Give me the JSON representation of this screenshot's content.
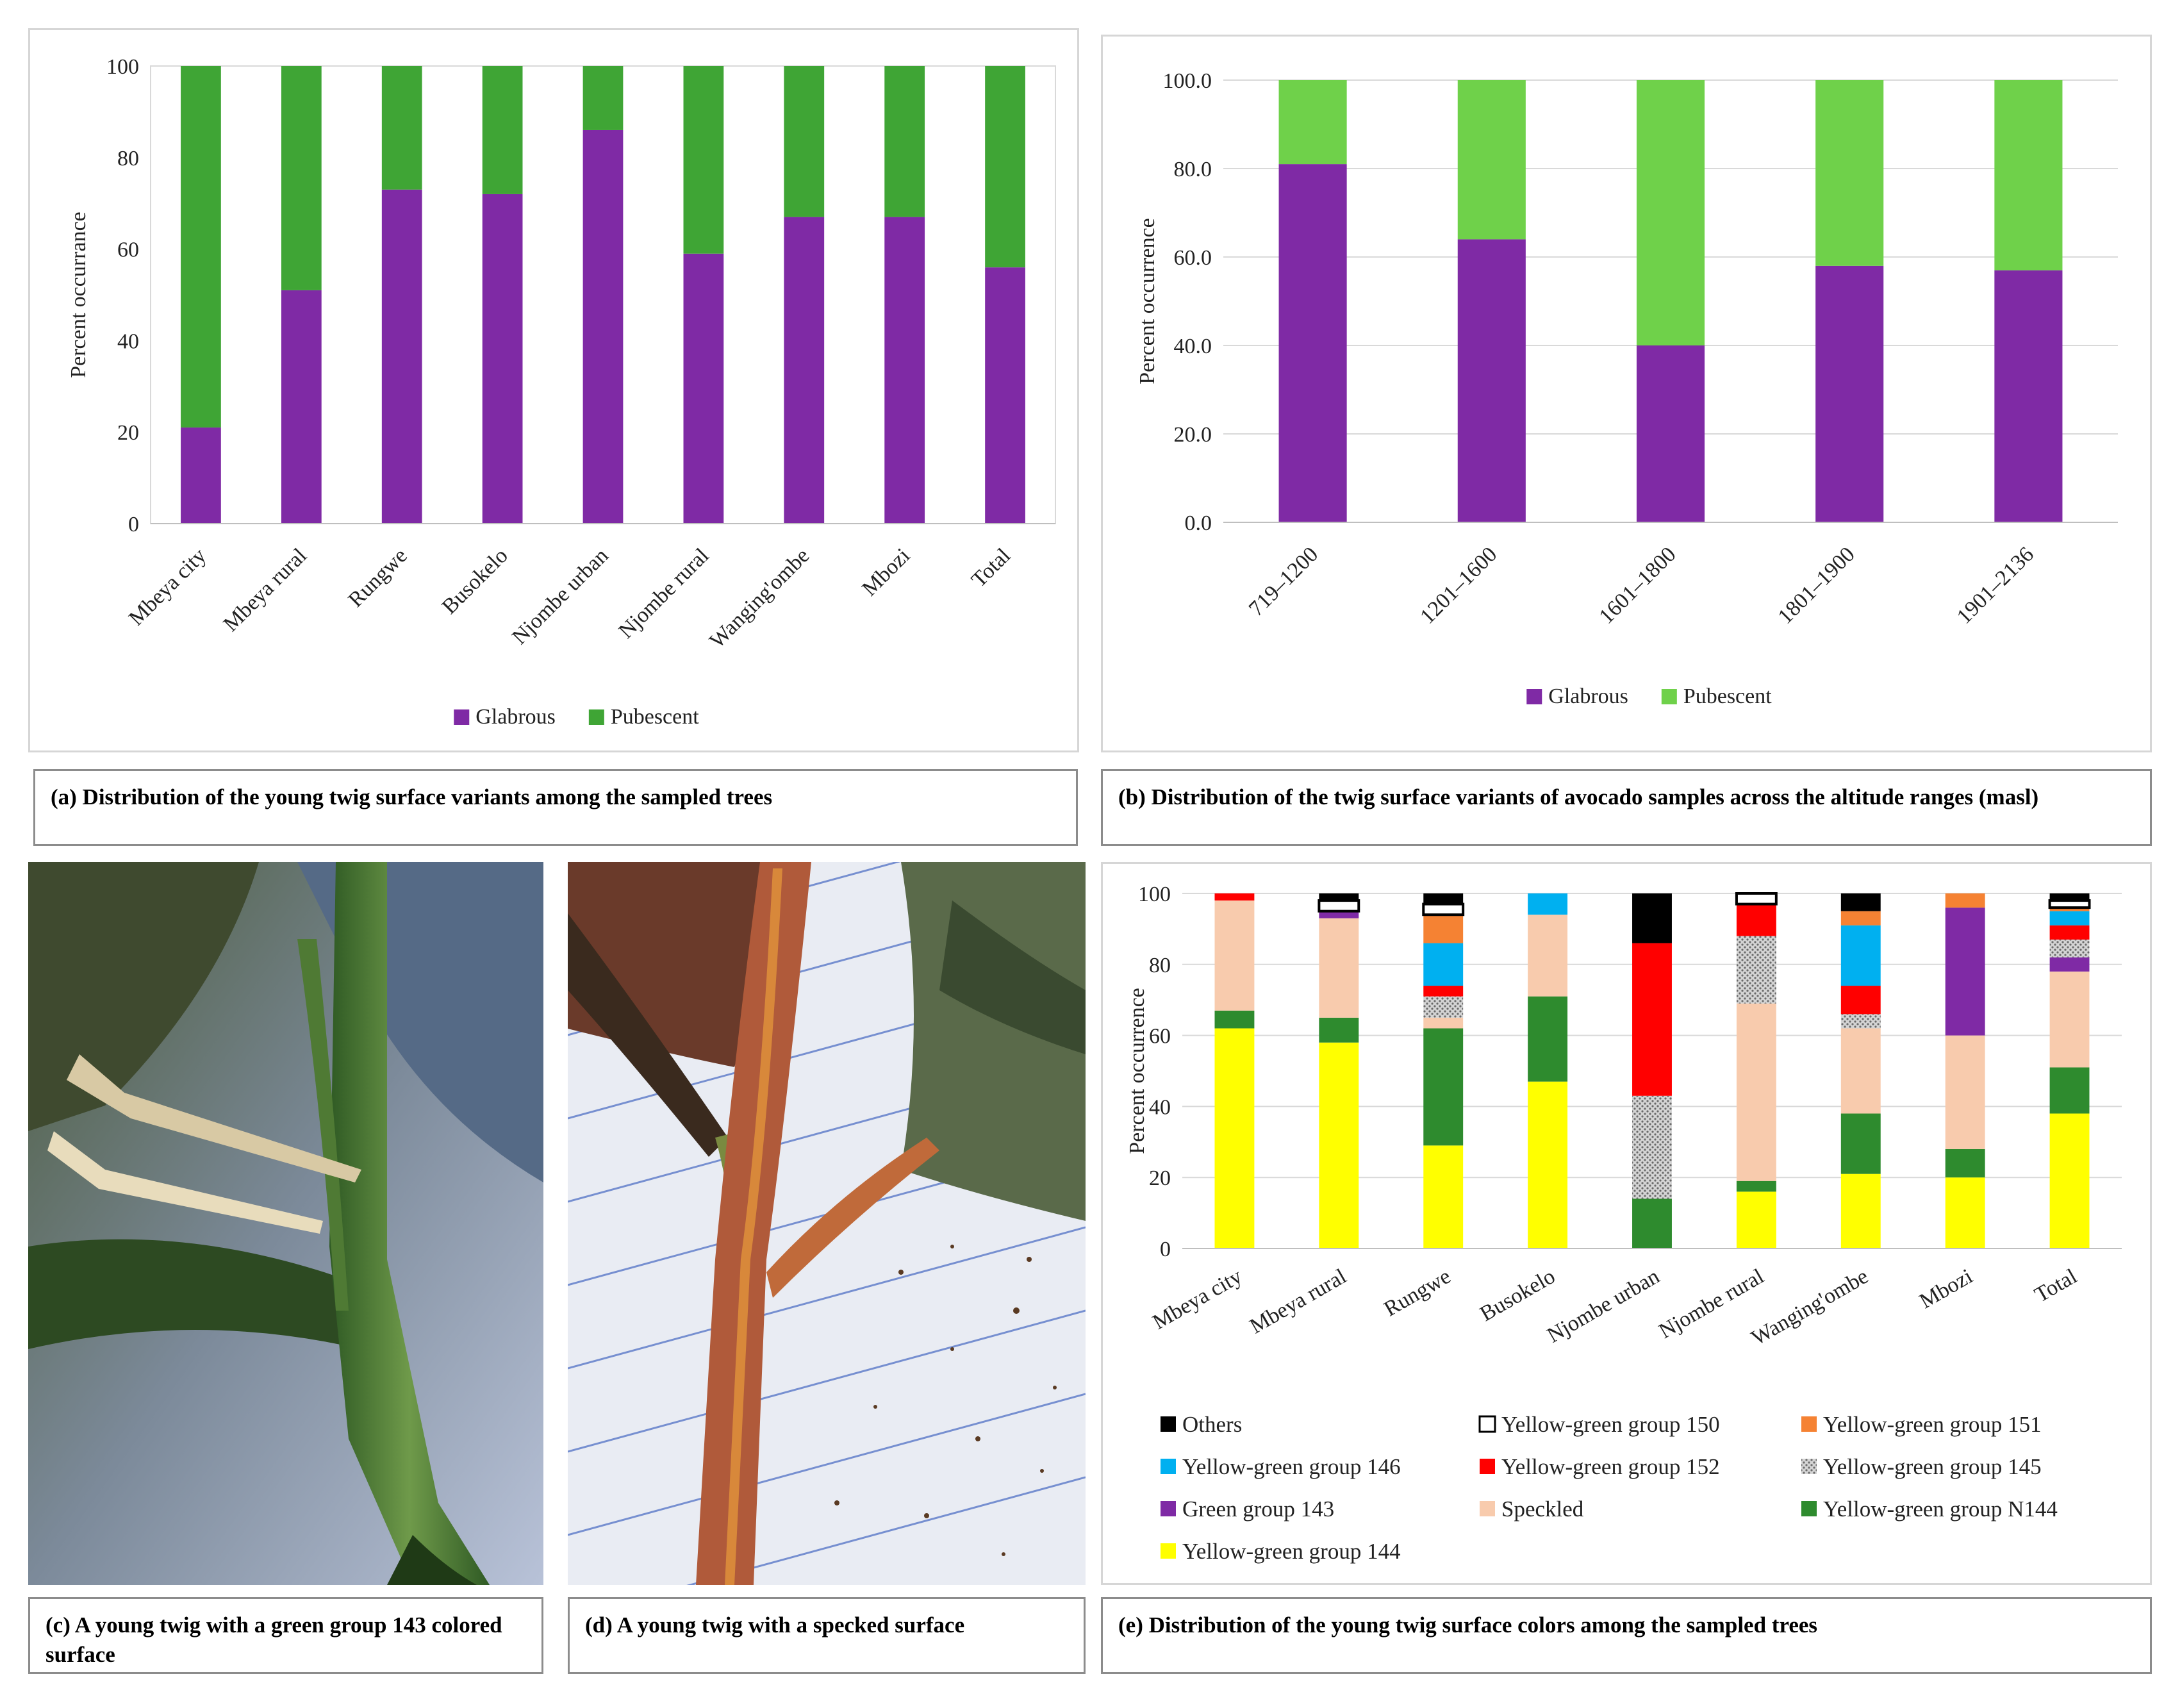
{
  "panel_a": {
    "caption": "(a)  Distribution of the young twig surface variants among the sampled trees"
  },
  "panel_b": {
    "caption": "(b)  Distribution of  the twig surface variants of avocado samples across the altitude ranges (masl)"
  },
  "panel_c": {
    "caption": "(c) A young twig with a green group 143 colored surface"
  },
  "panel_d": {
    "caption": "(d) A young twig with a specked surface"
  },
  "panel_e": {
    "caption": "(e) Distribution of the young twig surface colors among the sampled trees"
  },
  "chart_data": [
    {
      "id": "a",
      "type": "bar",
      "stacked": true,
      "title": "",
      "xlabel": "",
      "ylabel": "Percent occurrance",
      "ylim": [
        0,
        100
      ],
      "yticks": [
        "0",
        "20",
        "40",
        "60",
        "80",
        "100"
      ],
      "categories": [
        "Mbeya city",
        "Mbeya rural",
        "Rungwe",
        "Busokelo",
        "Njombe urban",
        "Njombe rural",
        "Wanging'ombe",
        "Mbozi",
        "Total"
      ],
      "series": [
        {
          "name": "Glabrous",
          "color": "#7f2aa5",
          "values": [
            21,
            51,
            73,
            72,
            86,
            59,
            67,
            67,
            56
          ]
        },
        {
          "name": "Pubescent",
          "color": "#3fa535",
          "values": [
            79,
            49,
            27,
            28,
            14,
            41,
            33,
            33,
            44
          ]
        }
      ],
      "grid": false,
      "legend_position": "bottom"
    },
    {
      "id": "b",
      "type": "bar",
      "stacked": true,
      "title": "",
      "xlabel": "",
      "ylabel": "Percent occurrence",
      "ylim": [
        0,
        100
      ],
      "yticks": [
        "0.0",
        "20.0",
        "40.0",
        "60.0",
        "80.0",
        "100.0"
      ],
      "categories": [
        "719–1200",
        "1201–1600",
        "1601–1800",
        "1801–1900",
        "1901–2136"
      ],
      "series": [
        {
          "name": "Glabrous",
          "color": "#7f2aa5",
          "values": [
            81,
            64,
            40,
            58,
            57
          ]
        },
        {
          "name": "Pubescent",
          "color": "#6fd14a",
          "values": [
            19,
            36,
            60,
            42,
            43
          ]
        }
      ],
      "grid": true,
      "legend_position": "bottom"
    },
    {
      "id": "e",
      "type": "bar",
      "stacked": true,
      "title": "",
      "xlabel": "",
      "ylabel": "Percent occurrence",
      "ylim": [
        0,
        100
      ],
      "yticks": [
        "0",
        "20",
        "40",
        "60",
        "80",
        "100"
      ],
      "categories": [
        "Mbeya city",
        "Mbeya rural",
        "Rungwe",
        "Busokelo",
        "Njombe urban",
        "Njombe rural",
        "Wanging'ombe",
        "Mbozi",
        "Total"
      ],
      "series": [
        {
          "name": "Yellow-green group 144",
          "color": "#ffff00",
          "values": [
            62,
            58,
            29,
            47,
            0,
            16,
            21,
            20,
            38
          ]
        },
        {
          "name": "Yellow-green group N144",
          "color": "#2e8b2e",
          "values": [
            5,
            7,
            33,
            24,
            14,
            3,
            17,
            8,
            13
          ]
        },
        {
          "name": "Speckled",
          "color": "#f8cbad",
          "values": [
            31,
            28,
            3,
            23,
            0,
            50,
            24,
            32,
            27
          ]
        },
        {
          "name": "Green group 143",
          "color": "#7f2aa5",
          "values": [
            0,
            2,
            0,
            0,
            0,
            0,
            0,
            36,
            4
          ]
        },
        {
          "name": "Yellow-green group 145",
          "color": "#bdbdbd",
          "pattern": true,
          "values": [
            0,
            0,
            6,
            0,
            29,
            19,
            4,
            0,
            5
          ]
        },
        {
          "name": "Yellow-green group 152",
          "color": "#ff0000",
          "values": [
            2,
            0,
            3,
            0,
            43,
            9,
            8,
            0,
            4
          ]
        },
        {
          "name": "Yellow-green group 146",
          "color": "#00b0f0",
          "values": [
            0,
            0,
            12,
            6,
            0,
            0,
            17,
            0,
            4
          ]
        },
        {
          "name": "Yellow-green group 151",
          "color": "#f58233",
          "values": [
            0,
            0,
            8,
            0,
            0,
            0,
            4,
            4,
            1
          ]
        },
        {
          "name": "Yellow-green group 150",
          "color": "#ffffff",
          "outline": true,
          "values": [
            0,
            3,
            3,
            0,
            0,
            3,
            0,
            0,
            2
          ]
        },
        {
          "name": "Others",
          "color": "#000000",
          "values": [
            0,
            2,
            3,
            0,
            14,
            0,
            5,
            0,
            2
          ]
        }
      ],
      "legend_order": [
        "Others",
        "Yellow-green group 150",
        "Yellow-green group 151",
        "Yellow-green group 146",
        "Yellow-green group 152",
        "Yellow-green group 145",
        "Green group 143",
        "Speckled",
        "Yellow-green group N144",
        "Yellow-green group 144"
      ],
      "grid": true,
      "legend_position": "bottom"
    }
  ]
}
